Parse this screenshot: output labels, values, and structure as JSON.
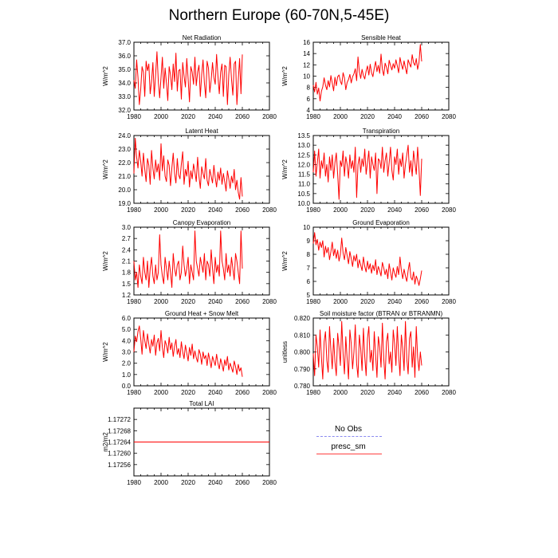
{
  "figure": {
    "title": "Northern Europe (60-70N,5-45E)"
  },
  "legend": {
    "items": [
      {
        "label": "No Obs",
        "color": "#8a8af0",
        "style": "dashed"
      },
      {
        "label": "presc_sm",
        "color": "#ff0000",
        "style": "solid"
      }
    ]
  },
  "colors": {
    "series": "#ff0000",
    "obs": "#8a8af0"
  },
  "chart_data": [
    {
      "type": "line",
      "title": "Net Radiation",
      "ylabel": "W/m^2",
      "xlim": [
        1980,
        2080
      ],
      "xticks": [
        1980,
        2000,
        2020,
        2040,
        2060,
        2080
      ],
      "ylim": [
        32.0,
        37.0
      ],
      "yticks": [
        "32.0",
        "33.0",
        "34.0",
        "35.0",
        "36.0",
        "37.0"
      ],
      "series": [
        {
          "x_start": 1980,
          "x_step": 1,
          "values": [
            34.2,
            33.6,
            35.7,
            34.4,
            32.4,
            33.5,
            35.2,
            34.8,
            33.0,
            35.6,
            34.9,
            35.4,
            33.2,
            34.1,
            35.5,
            33.0,
            34.6,
            36.3,
            34.1,
            32.9,
            34.4,
            35.9,
            33.6,
            35.1,
            34.0,
            32.7,
            35.2,
            34.6,
            33.5,
            35.4,
            34.1,
            36.2,
            33.4,
            34.9,
            35.0,
            32.8,
            35.5,
            34.5,
            33.7,
            35.8,
            34.3,
            32.6,
            35.2,
            34.8,
            33.9,
            35.9,
            33.8,
            34.8,
            35.3,
            33.0,
            34.6,
            35.7,
            34.0,
            32.9,
            35.6,
            35.1,
            33.3,
            34.2,
            35.5,
            34.4,
            33.9,
            36.1,
            34.5,
            33.2,
            34.8,
            35.4,
            33.0,
            35.3,
            35.2,
            32.4,
            34.6,
            35.9,
            34.3,
            33.1,
            35.4,
            35.6,
            32.4,
            34.2,
            35.8,
            33.2,
            36.1
          ]
        }
      ]
    },
    {
      "type": "line",
      "title": "Sensible Heat",
      "ylabel": "W/m^2",
      "xlim": [
        1980,
        2080
      ],
      "xticks": [
        1980,
        2000,
        2020,
        2040,
        2060,
        2080
      ],
      "ylim": [
        4,
        16
      ],
      "yticks": [
        "4",
        "6",
        "8",
        "10",
        "12",
        "14",
        "16"
      ],
      "series": [
        {
          "x_start": 1980,
          "x_step": 1,
          "values": [
            8.4,
            7.2,
            8.9,
            6.8,
            7.9,
            5.6,
            7.3,
            8.1,
            9.7,
            8.4,
            7.6,
            9.2,
            8.1,
            10.1,
            8.8,
            7.4,
            9.8,
            8.3,
            9.9,
            10.2,
            9.1,
            8.5,
            10.6,
            9.7,
            7.6,
            8.9,
            9.4,
            10.3,
            8.8,
            9.9,
            10.4,
            11.3,
            9.2,
            13.4,
            10.8,
            9.6,
            11.2,
            10.1,
            9.5,
            10.9,
            11.8,
            10.2,
            12.1,
            10.6,
            9.9,
            11.4,
            12.6,
            10.8,
            11.9,
            10.5,
            13.9,
            11.2,
            10.1,
            12.3,
            11.6,
            10.4,
            12.8,
            11.9,
            11.1,
            12.2,
            11.4,
            12.9,
            11.8,
            10.6,
            13.3,
            12.1,
            11.2,
            12.7,
            11.5,
            10.4,
            12.9,
            12.2,
            11.6,
            13.8,
            12.4,
            11.9,
            13.1,
            11.2,
            12.4,
            15.6,
            12.6
          ]
        }
      ]
    },
    {
      "type": "line",
      "title": "Latent Heat",
      "ylabel": "W/m^2",
      "xlim": [
        1980,
        2080
      ],
      "xticks": [
        1980,
        2000,
        2020,
        2040,
        2060,
        2080
      ],
      "ylim": [
        19.0,
        24.0
      ],
      "yticks": [
        "19.0",
        "20.0",
        "21.0",
        "22.0",
        "23.0",
        "24.0"
      ],
      "series": [
        {
          "x_start": 1980,
          "x_step": 1,
          "values": [
            21.2,
            23.8,
            22.4,
            21.6,
            22.9,
            22.1,
            21.0,
            22.7,
            21.5,
            20.6,
            22.3,
            21.8,
            20.4,
            22.9,
            21.6,
            20.8,
            22.2,
            21.3,
            21.9,
            20.7,
            23.4,
            21.4,
            22.5,
            21.0,
            20.6,
            22.2,
            21.8,
            20.3,
            21.6,
            22.7,
            21.2,
            20.5,
            22.3,
            21.1,
            20.8,
            21.9,
            22.8,
            20.4,
            21.5,
            21.0,
            22.1,
            20.2,
            21.4,
            20.8,
            21.9,
            21.3,
            20.6,
            22.4,
            21.0,
            20.1,
            21.7,
            21.2,
            20.8,
            22.3,
            20.7,
            20.3,
            21.5,
            21.0,
            20.5,
            21.8,
            20.9,
            20.2,
            21.3,
            20.7,
            21.6,
            20.4,
            21.2,
            20.6,
            19.9,
            21.4,
            20.8,
            20.1,
            21.0,
            20.5,
            21.5,
            20.0,
            20.7,
            19.8,
            19.3,
            20.9,
            19.5
          ]
        }
      ]
    },
    {
      "type": "line",
      "title": "Transpiration",
      "ylabel": "W/m^2",
      "xlim": [
        1980,
        2080
      ],
      "xticks": [
        1980,
        2000,
        2020,
        2040,
        2060,
        2080
      ],
      "ylim": [
        10.0,
        13.5
      ],
      "yticks": [
        "10.0",
        "10.5",
        "11.0",
        "11.5",
        "12.0",
        "12.5",
        "13.0",
        "13.5"
      ],
      "series": [
        {
          "x_start": 1980,
          "x_step": 1,
          "values": [
            11.6,
            12.7,
            11.4,
            12.1,
            12.8,
            11.3,
            12.2,
            11.8,
            12.6,
            11.4,
            12.0,
            11.1,
            12.4,
            11.7,
            12.5,
            11.3,
            12.1,
            12.6,
            11.5,
            10.2,
            12.2,
            11.9,
            12.7,
            11.4,
            12.4,
            12.0,
            11.3,
            12.5,
            11.8,
            12.2,
            11.6,
            12.9,
            10.3,
            12.0,
            12.4,
            11.6,
            12.3,
            11.9,
            12.8,
            11.5,
            12.1,
            12.7,
            11.3,
            12.4,
            12.0,
            11.7,
            12.6,
            10.5,
            12.3,
            12.2,
            11.8,
            12.9,
            11.6,
            12.2,
            12.6,
            11.4,
            12.1,
            12.9,
            11.7,
            11.2,
            12.4,
            12.0,
            12.8,
            11.5,
            12.3,
            11.9,
            12.6,
            11.3,
            12.0,
            12.5,
            13.0,
            11.6,
            12.2,
            11.4,
            12.7,
            12.1,
            11.5,
            12.9,
            11.8,
            10.4,
            12.3
          ]
        }
      ]
    },
    {
      "type": "line",
      "title": "Canopy Evaporation",
      "ylabel": "W/m^2",
      "xlim": [
        1980,
        2080
      ],
      "xticks": [
        1980,
        2000,
        2020,
        2040,
        2060,
        2080
      ],
      "ylim": [
        1.2,
        3.0
      ],
      "yticks": [
        "1.2",
        "1.5",
        "1.8",
        "2.1",
        "2.4",
        "2.7",
        "3.0"
      ],
      "series": [
        {
          "x_start": 1980,
          "x_step": 1,
          "values": [
            2.1,
            1.6,
            1.8,
            1.4,
            2.0,
            1.7,
            1.5,
            2.2,
            1.8,
            1.6,
            2.1,
            1.4,
            1.9,
            2.2,
            1.7,
            1.5,
            2.0,
            1.6,
            1.8,
            2.8,
            2.0,
            1.7,
            1.5,
            2.2,
            1.9,
            1.6,
            2.1,
            1.8,
            1.4,
            2.3,
            1.9,
            1.7,
            2.0,
            2.1,
            1.6,
            1.8,
            2.5,
            2.0,
            1.7,
            1.9,
            2.2,
            1.5,
            2.0,
            1.8,
            1.6,
            2.9,
            2.1,
            1.9,
            1.7,
            2.2,
            2.0,
            1.8,
            2.3,
            1.6,
            2.1,
            2.0,
            1.7,
            2.4,
            1.9,
            1.5,
            2.2,
            1.8,
            2.0,
            1.7,
            2.9,
            2.1,
            1.9,
            1.6,
            2.3,
            1.8,
            2.0,
            1.7,
            2.2,
            1.9,
            1.6,
            2.3,
            2.1,
            1.8,
            1.5,
            2.9,
            1.9
          ]
        }
      ]
    },
    {
      "type": "line",
      "title": "Ground Evaporation",
      "ylabel": "W/m^2",
      "xlim": [
        1980,
        2080
      ],
      "xticks": [
        1980,
        2000,
        2020,
        2040,
        2060,
        2080
      ],
      "ylim": [
        5,
        10
      ],
      "yticks": [
        "5",
        "6",
        "7",
        "8",
        "9",
        "10"
      ],
      "series": [
        {
          "x_start": 1980,
          "x_step": 1,
          "values": [
            8.8,
            9.6,
            8.7,
            9.1,
            8.3,
            8.9,
            8.5,
            9.0,
            7.8,
            8.6,
            8.1,
            8.5,
            7.6,
            8.2,
            8.9,
            7.9,
            8.4,
            7.7,
            8.3,
            7.5,
            8.0,
            9.2,
            8.1,
            7.6,
            8.5,
            7.9,
            7.3,
            8.2,
            7.7,
            7.1,
            7.9,
            7.5,
            8.0,
            7.0,
            7.6,
            7.2,
            6.8,
            7.8,
            7.1,
            6.7,
            7.5,
            6.9,
            7.3,
            6.6,
            7.2,
            6.8,
            7.6,
            6.5,
            7.1,
            6.8,
            6.4,
            7.4,
            7.0,
            6.5,
            6.9,
            6.2,
            7.3,
            6.7,
            6.1,
            7.0,
            6.6,
            6.3,
            7.1,
            6.5,
            7.8,
            6.8,
            6.2,
            6.9,
            6.4,
            6.0,
            6.8,
            7.4,
            6.3,
            6.1,
            6.7,
            5.8,
            6.4,
            6.1,
            5.7,
            6.2,
            6.8
          ]
        }
      ]
    },
    {
      "type": "line",
      "title": "Ground Heat + Snow Melt",
      "ylabel": "W/m^2",
      "xlim": [
        1980,
        2080
      ],
      "xticks": [
        1980,
        2000,
        2020,
        2040,
        2060,
        2080
      ],
      "ylim": [
        0.0,
        6.0
      ],
      "yticks": [
        "0.0",
        "1.0",
        "2.0",
        "3.0",
        "4.0",
        "5.0",
        "6.0"
      ],
      "series": [
        {
          "x_start": 1980,
          "x_step": 1,
          "values": [
            3.0,
            4.4,
            3.9,
            4.8,
            5.3,
            4.2,
            2.8,
            4.9,
            4.0,
            3.3,
            4.6,
            3.7,
            2.9,
            4.1,
            3.5,
            4.5,
            2.7,
            3.8,
            4.2,
            3.1,
            4.9,
            3.4,
            2.5,
            4.0,
            3.6,
            2.9,
            4.3,
            3.2,
            3.8,
            2.6,
            3.5,
            4.1,
            2.8,
            3.3,
            2.5,
            3.9,
            3.0,
            2.4,
            3.6,
            2.9,
            2.2,
            3.4,
            2.7,
            3.7,
            2.4,
            3.1,
            2.5,
            2.1,
            3.2,
            2.8,
            1.9,
            3.0,
            2.4,
            2.7,
            1.8,
            2.9,
            2.3,
            1.6,
            2.6,
            2.2,
            1.8,
            2.8,
            2.0,
            1.5,
            2.4,
            1.9,
            1.3,
            2.3,
            1.8,
            2.6,
            1.4,
            2.0,
            1.6,
            1.2,
            2.2,
            1.7,
            1.0,
            1.9,
            1.3,
            1.6,
            0.8
          ]
        }
      ]
    },
    {
      "type": "line",
      "title": "Soil moisture factor (BTRAN or BTRANMN)",
      "ylabel": "unitless",
      "xlim": [
        1980,
        2080
      ],
      "xticks": [
        1980,
        2000,
        2020,
        2040,
        2060,
        2080
      ],
      "ylim": [
        0.78,
        0.82
      ],
      "yticks": [
        "0.780",
        "0.790",
        "0.800",
        "0.810",
        "0.820"
      ],
      "series": [
        {
          "x_start": 1980,
          "x_step": 1,
          "values": [
            0.799,
            0.786,
            0.81,
            0.803,
            0.791,
            0.813,
            0.797,
            0.784,
            0.806,
            0.812,
            0.795,
            0.788,
            0.815,
            0.801,
            0.79,
            0.808,
            0.794,
            0.786,
            0.811,
            0.803,
            0.792,
            0.818,
            0.799,
            0.787,
            0.809,
            0.796,
            0.784,
            0.813,
            0.805,
            0.79,
            0.8,
            0.816,
            0.793,
            0.785,
            0.81,
            0.802,
            0.789,
            0.814,
            0.797,
            0.786,
            0.808,
            0.815,
            0.794,
            0.801,
            0.789,
            0.812,
            0.798,
            0.785,
            0.809,
            0.803,
            0.791,
            0.817,
            0.796,
            0.784,
            0.806,
            0.811,
            0.793,
            0.8,
            0.788,
            0.813,
            0.805,
            0.792,
            0.815,
            0.798,
            0.786,
            0.81,
            0.802,
            0.789,
            0.818,
            0.796,
            0.787,
            0.808,
            0.812,
            0.791,
            0.803,
            0.785,
            0.815,
            0.797,
            0.789,
            0.8,
            0.792
          ]
        }
      ]
    },
    {
      "type": "line",
      "title": "Total LAI",
      "ylabel": "m2/m2",
      "xlim": [
        1980,
        2080
      ],
      "xticks": [
        1980,
        2000,
        2020,
        2040,
        2060,
        2080
      ],
      "ylim": [
        1.17252,
        1.17276
      ],
      "yticks": [
        "1.17256",
        "1.17260",
        "1.17264",
        "1.17268",
        "1.17272"
      ],
      "series": [
        {
          "x_start": 1980,
          "x_step": 100,
          "values": [
            1.17264,
            1.17264
          ]
        }
      ]
    }
  ]
}
